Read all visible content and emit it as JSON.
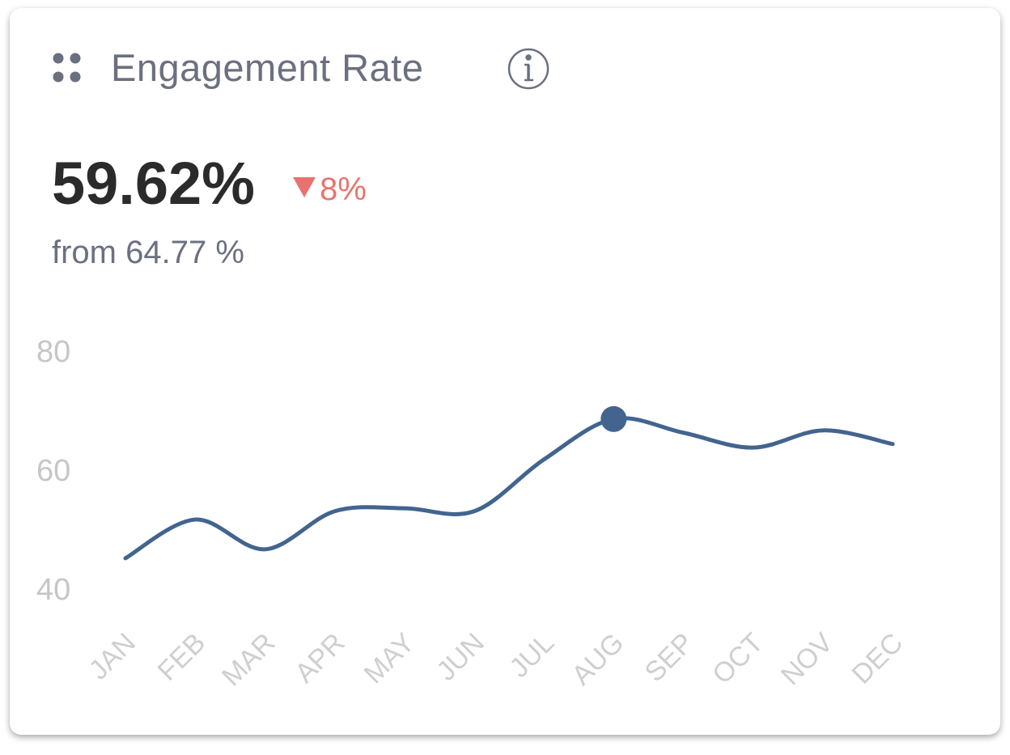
{
  "header": {
    "title": "Engagement Rate"
  },
  "kpi": {
    "value": "59.62%",
    "change": "8%",
    "from": "from 64.77 %"
  },
  "chart_data": {
    "type": "line",
    "categories": [
      "JAN",
      "FEB",
      "MAR",
      "APR",
      "MAY",
      "JUN",
      "JUL",
      "AUG",
      "SEP",
      "OCT",
      "NOV",
      "DEC"
    ],
    "values": [
      45.6,
      52.1,
      47.1,
      53.5,
      54.0,
      53.5,
      62.2,
      69.0,
      66.7,
      64.2,
      67.1,
      64.8
    ],
    "color": "#42648f",
    "highlight_index": 7,
    "ylim": [
      40,
      80
    ],
    "yticks": [
      40,
      60,
      80
    ],
    "grid": false
  }
}
